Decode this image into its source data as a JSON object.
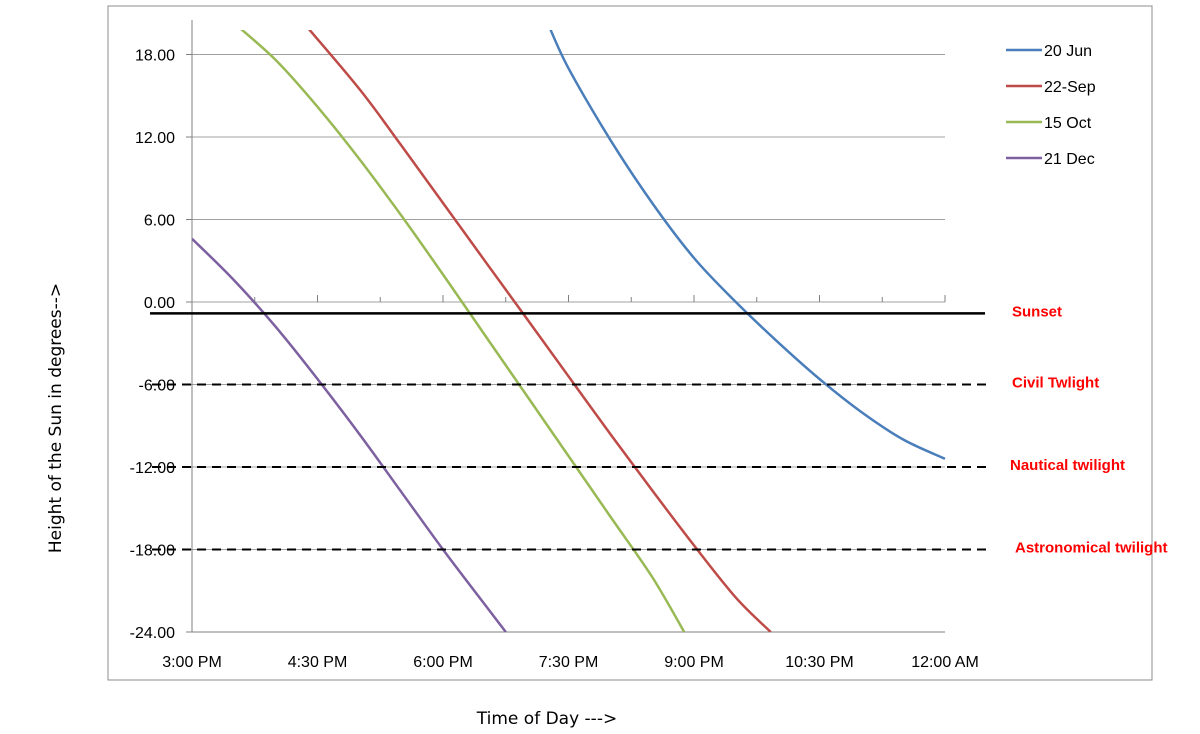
{
  "chart_data": {
    "type": "line",
    "title": "",
    "xlabel": "Time of Day --->",
    "ylabel": "Height of the Sun in degrees-->",
    "x_ticks": [
      "3:00 PM",
      "4:30 PM",
      "6:00 PM",
      "7:30 PM",
      "9:00 PM",
      "10:30 PM",
      "12:00 AM"
    ],
    "y_ticks": [
      "18.00",
      "12.00",
      "6.00",
      "0.00",
      "-6.00",
      "-12.00",
      "-18.00",
      "-24.00"
    ],
    "ylim": [
      -24,
      20.5
    ],
    "xlim": [
      "3:00 PM",
      "12:00 AM"
    ],
    "grid": "horizontal",
    "legend_position": "top-right",
    "series": [
      {
        "name": "20 Jun",
        "color": "#4a7ebb",
        "points": [
          [
            "7:15 PM",
            20.3
          ],
          [
            "7:30 PM",
            17.0
          ],
          [
            "8:00 PM",
            11.8
          ],
          [
            "8:30 PM",
            7.2
          ],
          [
            "9:00 PM",
            3.2
          ],
          [
            "9:30 PM",
            0.0
          ],
          [
            "10:00 PM",
            -2.9
          ],
          [
            "10:30 PM",
            -5.6
          ],
          [
            "11:00 PM",
            -8.0
          ],
          [
            "11:30 PM",
            -10.0
          ],
          [
            "12:00 AM",
            -11.4
          ]
        ]
      },
      {
        "name": "22-Sep",
        "color": "#be4b48",
        "points": [
          [
            "4:20 PM",
            20.3
          ],
          [
            "5:00 PM",
            15.5
          ],
          [
            "5:30 PM",
            11.4
          ],
          [
            "6:00 PM",
            7.2
          ],
          [
            "6:30 PM",
            3.0
          ],
          [
            "7:00 PM",
            -1.2
          ],
          [
            "7:30 PM",
            -5.4
          ],
          [
            "8:00 PM",
            -9.6
          ],
          [
            "8:30 PM",
            -13.7
          ],
          [
            "9:00 PM",
            -17.7
          ],
          [
            "9:30 PM",
            -21.5
          ],
          [
            "9:55 PM",
            -24.0
          ]
        ]
      },
      {
        "name": "15 Oct",
        "color": "#98b954",
        "points": [
          [
            "3:30 PM",
            20.3
          ],
          [
            "4:00 PM",
            17.6
          ],
          [
            "4:30 PM",
            14.2
          ],
          [
            "5:00 PM",
            10.4
          ],
          [
            "5:30 PM",
            6.3
          ],
          [
            "6:00 PM",
            2.0
          ],
          [
            "6:30 PM",
            -2.4
          ],
          [
            "7:00 PM",
            -6.8
          ],
          [
            "7:30 PM",
            -11.2
          ],
          [
            "8:00 PM",
            -15.6
          ],
          [
            "8:30 PM",
            -20.0
          ],
          [
            "8:53 PM",
            -24.0
          ]
        ]
      },
      {
        "name": "21 Dec",
        "color": "#7d60a0",
        "points": [
          [
            "3:00 PM",
            4.6
          ],
          [
            "3:30 PM",
            1.6
          ],
          [
            "4:00 PM",
            -1.8
          ],
          [
            "4:30 PM",
            -5.6
          ],
          [
            "5:00 PM",
            -9.6
          ],
          [
            "5:30 PM",
            -13.8
          ],
          [
            "6:00 PM",
            -18.0
          ],
          [
            "6:30 PM",
            -22.0
          ],
          [
            "6:45 PM",
            -24.0
          ]
        ]
      }
    ],
    "reference_lines": [
      {
        "label": "Sunset",
        "y": -0.83,
        "style": "solid"
      },
      {
        "label": "Civil Twlight",
        "y": -6,
        "style": "dashed"
      },
      {
        "label": "Nautical twilight",
        "y": -12,
        "style": "dashed"
      },
      {
        "label": "Astronomical twilight",
        "y": -18,
        "style": "dashed"
      }
    ],
    "colors": {
      "annotation": "#ff0000",
      "grid": "#a0a0a0",
      "reference": "#000000"
    }
  }
}
